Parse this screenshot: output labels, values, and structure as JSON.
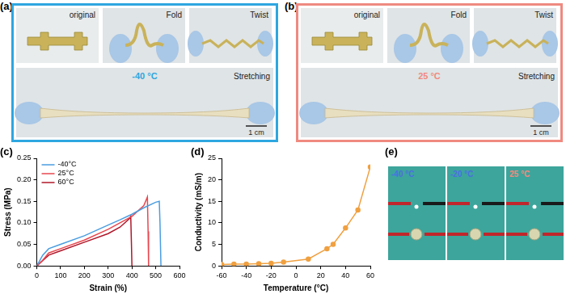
{
  "photo_panels": [
    {
      "panel": "(a)",
      "color": "#2ea6e0",
      "tiles": [
        "original",
        "Fold",
        "Twist"
      ],
      "temperature": "-40 °C",
      "stretch_label": "Stretching",
      "scale_bar": "1 cm"
    },
    {
      "panel": "(b)",
      "color": "#ef8a80",
      "tiles": [
        "original",
        "Fold",
        "Twist"
      ],
      "temperature": "25 °C",
      "stretch_label": "Stretching",
      "scale_bar": "1 cm"
    }
  ],
  "chart_data": [
    {
      "panel": "(c)",
      "type": "line",
      "x_label": "Strain (%)",
      "y_label": "Stress (MPa)",
      "xlim": [
        0,
        600
      ],
      "xticks": [
        0,
        100,
        200,
        300,
        400,
        500,
        600
      ],
      "ylim": [
        0,
        0.25
      ],
      "yticks": [
        {
          "value": 0,
          "label": "0.00"
        },
        0.05,
        {
          "value": 0.1,
          "label": "0.10"
        },
        0.15,
        {
          "value": 0.2,
          "label": "0.20"
        },
        0.25
      ],
      "grid": false,
      "legend": "top-left",
      "series": [
        {
          "name": "-40°C",
          "color": "#4a9de0",
          "x": [
            0,
            10,
            25,
            50,
            100,
            200,
            300,
            350,
            400,
            450,
            500,
            515,
            518,
            522
          ],
          "values": [
            0,
            0.01,
            0.025,
            0.04,
            0.05,
            0.07,
            0.095,
            0.107,
            0.12,
            0.135,
            0.148,
            0.15,
            0.1,
            0
          ]
        },
        {
          "name": "25°C",
          "color": "#e8474f",
          "x": [
            0,
            20,
            50,
            100,
            200,
            300,
            400,
            450,
            465,
            468,
            470
          ],
          "values": [
            0,
            0.01,
            0.03,
            0.04,
            0.06,
            0.085,
            0.115,
            0.14,
            0.16,
            0.08,
            0
          ]
        },
        {
          "name": "60°C",
          "color": "#b0172a",
          "x": [
            0,
            20,
            50,
            100,
            200,
            300,
            350,
            390,
            395,
            398,
            400
          ],
          "values": [
            0,
            0.01,
            0.025,
            0.035,
            0.055,
            0.075,
            0.09,
            0.11,
            0.115,
            0.05,
            0
          ]
        }
      ]
    },
    {
      "panel": "(d)",
      "type": "line",
      "x_label": "Temperature (°C)",
      "y_label": "Conductivity (mS/m)",
      "xlim": [
        -60,
        60
      ],
      "xticks": [
        -60,
        -40,
        -20,
        0,
        20,
        40,
        60
      ],
      "ylim": [
        0,
        25
      ],
      "yticks": [
        0,
        5,
        10,
        15,
        20,
        25
      ],
      "grid": false,
      "series": [
        {
          "color": "#f0a040",
          "marker": "circle",
          "x": [
            -60,
            -50,
            -40,
            -30,
            -20,
            -10,
            10,
            25,
            30,
            40,
            50,
            60
          ],
          "values": [
            0.3,
            0.4,
            0.4,
            0.5,
            0.6,
            0.9,
            1.6,
            4,
            5,
            8.8,
            13,
            23
          ]
        }
      ]
    }
  ],
  "circuit_panel": {
    "panel": "(e)",
    "tiles": [
      {
        "label": "-40 °C",
        "color": "#4a6fe0"
      },
      {
        "label": "-20 °C",
        "color": "#4a6fe0"
      },
      {
        "label": "25 °C",
        "color": "#f08a80"
      }
    ]
  }
}
